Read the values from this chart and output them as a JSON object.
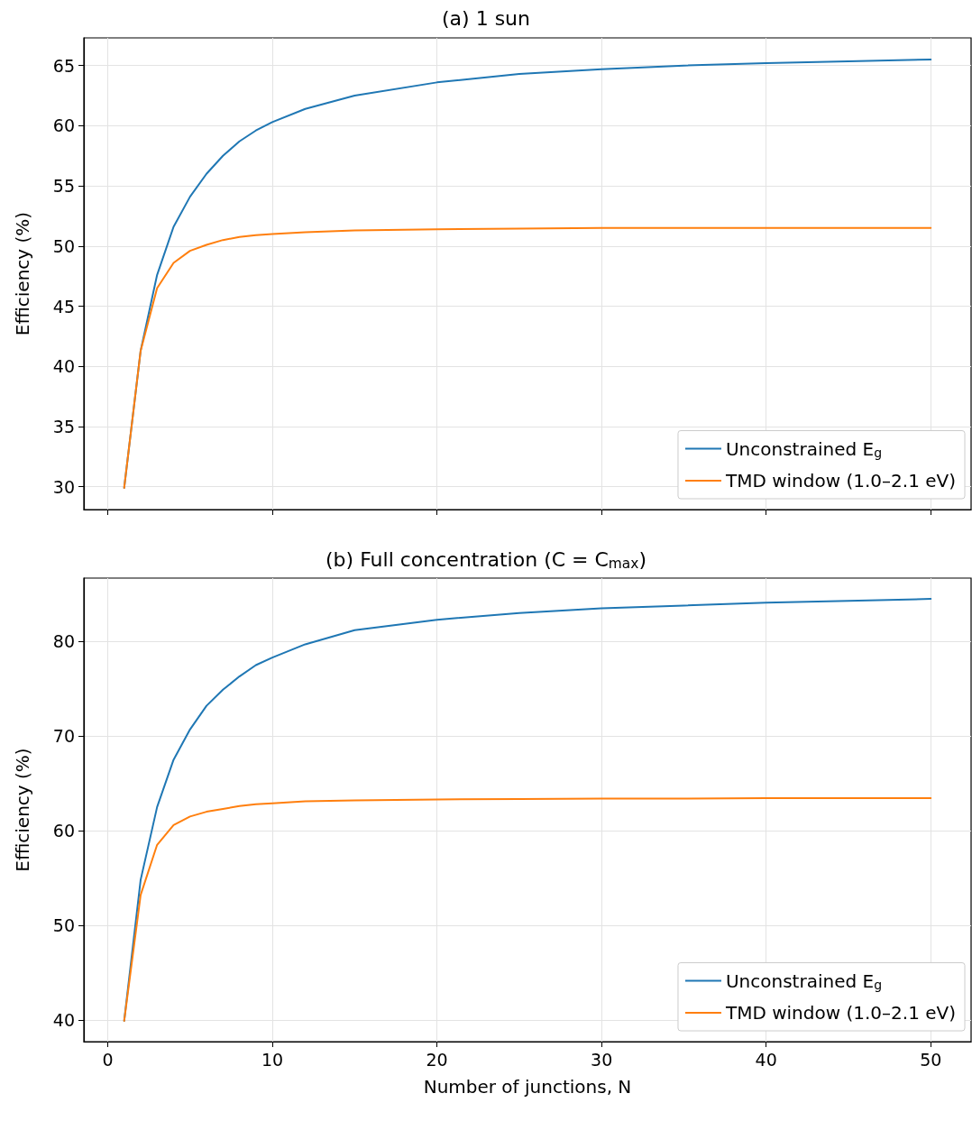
{
  "chart_data": [
    {
      "type": "line",
      "title": "(a) 1 sun",
      "ylabel": "Efficiency (%)",
      "x": [
        1,
        2,
        3,
        4,
        5,
        6,
        7,
        8,
        9,
        10,
        12,
        15,
        20,
        25,
        30,
        35,
        40,
        45,
        50
      ],
      "series": [
        {
          "name": "Unconstrained E$_{g}$",
          "color": "#1f77b4",
          "values": [
            29.9,
            41.3,
            47.6,
            51.6,
            54.1,
            56.0,
            57.5,
            58.7,
            59.6,
            60.3,
            61.4,
            62.5,
            63.6,
            64.3,
            64.7,
            65.0,
            65.2,
            65.35,
            65.5
          ]
        },
        {
          "name": "TMD window (1.0–2.1 eV)",
          "color": "#ff7f0e",
          "values": [
            29.9,
            41.3,
            46.5,
            48.6,
            49.6,
            50.1,
            50.5,
            50.75,
            50.9,
            51.0,
            51.15,
            51.3,
            51.4,
            51.45,
            51.5,
            51.5,
            51.5,
            51.5,
            51.5
          ]
        }
      ],
      "xlim": [
        -1.45,
        52.45
      ],
      "xticks": [
        0,
        10,
        20,
        30,
        40,
        50
      ],
      "ylim": [
        28.1,
        67.3
      ],
      "yticks": [
        30,
        35,
        40,
        45,
        50,
        55,
        60,
        65
      ],
      "tick_labels": "y",
      "grid": true,
      "legend": "bottom right",
      "marker": "none",
      "line_style": "solid"
    },
    {
      "type": "line",
      "title": "(b) Full concentration (C = C$_{max}$)",
      "xlabel": "Number of junctions, N",
      "ylabel": "Efficiency (%)",
      "x": [
        1,
        2,
        3,
        4,
        5,
        6,
        7,
        8,
        9,
        10,
        12,
        15,
        20,
        25,
        30,
        35,
        40,
        45,
        50
      ],
      "series": [
        {
          "name": "Unconstrained E$_{g}$",
          "color": "#1f77b4",
          "values": [
            39.9,
            54.8,
            62.5,
            67.5,
            70.7,
            73.2,
            74.9,
            76.3,
            77.5,
            78.3,
            79.7,
            81.2,
            82.3,
            83.0,
            83.5,
            83.8,
            84.1,
            84.3,
            84.5
          ]
        },
        {
          "name": "TMD window (1.0–2.1 eV)",
          "color": "#ff7f0e",
          "values": [
            39.9,
            53.2,
            58.5,
            60.6,
            61.5,
            62.0,
            62.3,
            62.6,
            62.8,
            62.9,
            63.1,
            63.2,
            63.3,
            63.35,
            63.4,
            63.4,
            63.45,
            63.45,
            63.45
          ]
        }
      ],
      "xlim": [
        -1.45,
        52.45
      ],
      "xticks": [
        0,
        10,
        20,
        30,
        40,
        50
      ],
      "ylim": [
        37.7,
        86.7
      ],
      "yticks": [
        40,
        50,
        60,
        70,
        80
      ],
      "grid": true,
      "legend": "bottom right",
      "marker": "none",
      "line_style": "solid"
    }
  ]
}
